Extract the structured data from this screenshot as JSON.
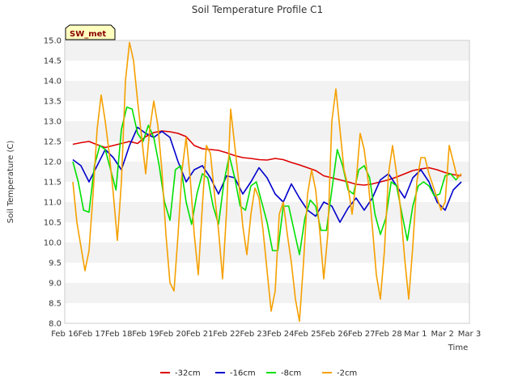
{
  "chart_data": {
    "type": "line",
    "title": "Soil Temperature Profile C1",
    "xlabel": "Time",
    "ylabel": "Soil Temperature (C)",
    "badge": "SW_met",
    "x_ticks": [
      "Feb 16",
      "Feb 17",
      "Feb 18",
      "Feb 19",
      "Feb 20",
      "Feb 21",
      "Feb 22",
      "Feb 23",
      "Feb 24",
      "Feb 25",
      "Feb 26",
      "Feb 27",
      "Feb 28",
      "Mar 1",
      "Mar 2",
      "Mar 3"
    ],
    "y_ticks": [
      "8.0",
      "8.5",
      "9.0",
      "9.5",
      "10.0",
      "10.5",
      "11.0",
      "11.5",
      "12.0",
      "12.5",
      "13.0",
      "13.5",
      "14.0",
      "14.5",
      "15.0"
    ],
    "xlim": [
      0,
      15
    ],
    "ylim": [
      8.0,
      15.0
    ],
    "x_unit": "days since Feb 16",
    "grid": "horizontal bands",
    "legend_position": "bottom",
    "series": [
      {
        "name": "-32cm",
        "color": "#dd0000",
        "x": [
          0.3,
          0.6,
          0.9,
          1.2,
          1.5,
          1.8,
          2.1,
          2.4,
          2.7,
          3.0,
          3.3,
          3.6,
          3.9,
          4.2,
          4.5,
          4.8,
          5.1,
          5.4,
          5.7,
          6.0,
          6.3,
          6.6,
          6.9,
          7.2,
          7.5,
          7.8,
          8.1,
          8.4,
          8.7,
          9.0,
          9.3,
          9.6,
          9.9,
          10.2,
          10.5,
          10.8,
          11.1,
          11.4,
          11.7,
          12.0,
          12.3,
          12.6,
          12.9,
          13.2,
          13.5,
          13.8,
          14.1,
          14.4,
          14.7
        ],
        "y": [
          12.43,
          12.47,
          12.5,
          12.42,
          12.35,
          12.4,
          12.45,
          12.5,
          12.45,
          12.62,
          12.72,
          12.76,
          12.74,
          12.7,
          12.62,
          12.4,
          12.32,
          12.3,
          12.28,
          12.22,
          12.15,
          12.1,
          12.08,
          12.05,
          12.04,
          12.08,
          12.05,
          11.98,
          11.92,
          11.85,
          11.78,
          11.65,
          11.6,
          11.55,
          11.5,
          11.44,
          11.42,
          11.45,
          11.5,
          11.55,
          11.62,
          11.7,
          11.78,
          11.82,
          11.85,
          11.8,
          11.73,
          11.68,
          11.65
        ]
      },
      {
        "name": "-16cm",
        "color": "#0000cc",
        "x": [
          0.3,
          0.6,
          0.9,
          1.2,
          1.5,
          1.8,
          2.1,
          2.4,
          2.7,
          3.0,
          3.3,
          3.6,
          3.9,
          4.2,
          4.5,
          4.8,
          5.1,
          5.4,
          5.7,
          6.0,
          6.3,
          6.6,
          6.9,
          7.2,
          7.5,
          7.8,
          8.1,
          8.4,
          8.7,
          9.0,
          9.3,
          9.6,
          9.9,
          10.2,
          10.5,
          10.8,
          11.1,
          11.4,
          11.7,
          12.0,
          12.3,
          12.6,
          12.9,
          13.2,
          13.5,
          13.8,
          14.1,
          14.4,
          14.7
        ],
        "y": [
          12.05,
          11.9,
          11.5,
          11.9,
          12.3,
          12.1,
          11.8,
          12.4,
          12.85,
          12.7,
          12.6,
          12.75,
          12.6,
          12.0,
          11.5,
          11.8,
          11.9,
          11.6,
          11.2,
          11.65,
          11.6,
          11.2,
          11.5,
          11.85,
          11.6,
          11.2,
          11.0,
          11.45,
          11.1,
          10.8,
          10.65,
          11.0,
          10.9,
          10.5,
          10.85,
          11.1,
          10.8,
          11.1,
          11.55,
          11.7,
          11.4,
          11.1,
          11.6,
          11.8,
          11.5,
          11.0,
          10.8,
          11.3,
          11.5
        ]
      },
      {
        "name": "-8cm",
        "color": "#00e000",
        "x": [
          0.3,
          0.5,
          0.7,
          0.9,
          1.1,
          1.3,
          1.5,
          1.7,
          1.9,
          2.1,
          2.3,
          2.5,
          2.7,
          2.9,
          3.1,
          3.3,
          3.5,
          3.7,
          3.9,
          4.1,
          4.3,
          4.5,
          4.7,
          4.9,
          5.1,
          5.3,
          5.5,
          5.7,
          5.9,
          6.1,
          6.3,
          6.5,
          6.7,
          6.9,
          7.1,
          7.3,
          7.5,
          7.7,
          7.9,
          8.1,
          8.3,
          8.5,
          8.7,
          8.9,
          9.1,
          9.3,
          9.5,
          9.7,
          9.9,
          10.1,
          10.3,
          10.5,
          10.7,
          10.9,
          11.1,
          11.3,
          11.5,
          11.7,
          11.9,
          12.1,
          12.3,
          12.5,
          12.7,
          12.9,
          13.1,
          13.3,
          13.5,
          13.7,
          13.9,
          14.1,
          14.3,
          14.5,
          14.7
        ],
        "y": [
          12.0,
          11.5,
          10.8,
          10.75,
          11.9,
          12.4,
          12.3,
          11.8,
          11.3,
          12.8,
          13.35,
          13.3,
          12.7,
          12.5,
          12.9,
          12.6,
          11.9,
          11.0,
          10.55,
          11.8,
          11.9,
          11.0,
          10.45,
          11.2,
          11.7,
          11.6,
          10.9,
          10.45,
          11.5,
          12.15,
          11.6,
          10.9,
          10.8,
          11.4,
          11.5,
          11.0,
          10.5,
          9.8,
          9.8,
          10.9,
          10.9,
          10.3,
          9.7,
          10.6,
          11.05,
          10.9,
          10.3,
          10.3,
          11.3,
          12.3,
          11.9,
          11.3,
          11.2,
          11.8,
          11.9,
          11.6,
          10.7,
          10.2,
          10.6,
          11.5,
          11.4,
          10.7,
          10.05,
          10.9,
          11.4,
          11.5,
          11.4,
          11.15,
          11.2,
          11.65,
          11.7,
          11.55,
          11.7
        ]
      },
      {
        "name": "-2cm",
        "color": "#f5a000",
        "x": [
          0.3,
          0.45,
          0.6,
          0.75,
          0.9,
          1.05,
          1.2,
          1.35,
          1.5,
          1.65,
          1.8,
          1.95,
          2.1,
          2.25,
          2.4,
          2.55,
          2.7,
          2.85,
          3.0,
          3.15,
          3.3,
          3.45,
          3.6,
          3.75,
          3.9,
          4.05,
          4.2,
          4.35,
          4.5,
          4.65,
          4.8,
          4.95,
          5.1,
          5.25,
          5.4,
          5.55,
          5.7,
          5.85,
          6.0,
          6.15,
          6.3,
          6.45,
          6.6,
          6.75,
          6.9,
          7.05,
          7.2,
          7.35,
          7.5,
          7.65,
          7.8,
          7.95,
          8.1,
          8.25,
          8.4,
          8.55,
          8.7,
          8.85,
          9.0,
          9.15,
          9.3,
          9.45,
          9.6,
          9.75,
          9.9,
          10.05,
          10.2,
          10.35,
          10.5,
          10.65,
          10.8,
          10.95,
          11.1,
          11.25,
          11.4,
          11.55,
          11.7,
          11.85,
          12.0,
          12.15,
          12.3,
          12.45,
          12.6,
          12.75,
          12.9,
          13.05,
          13.2,
          13.35,
          13.5,
          13.65,
          13.8,
          13.95,
          14.1,
          14.25,
          14.4,
          14.55,
          14.7
        ],
        "y": [
          11.5,
          10.5,
          9.9,
          9.3,
          9.8,
          11.2,
          12.8,
          13.65,
          13.0,
          12.2,
          11.2,
          10.05,
          11.5,
          14.0,
          14.95,
          14.5,
          13.5,
          12.6,
          11.7,
          12.8,
          13.5,
          12.9,
          11.8,
          10.2,
          9.0,
          8.8,
          10.2,
          11.8,
          12.6,
          11.6,
          10.2,
          9.2,
          10.9,
          12.4,
          12.2,
          11.2,
          10.3,
          9.1,
          10.8,
          13.3,
          12.4,
          11.5,
          10.4,
          9.7,
          10.7,
          11.35,
          11.1,
          10.3,
          9.3,
          8.3,
          8.8,
          10.7,
          11.0,
          10.2,
          9.5,
          8.6,
          8.05,
          9.5,
          11.2,
          11.8,
          11.3,
          10.3,
          9.1,
          10.2,
          13.0,
          13.8,
          12.8,
          11.8,
          11.4,
          10.7,
          11.5,
          12.7,
          12.3,
          11.5,
          10.4,
          9.2,
          8.6,
          9.8,
          11.7,
          12.4,
          11.7,
          10.8,
          9.6,
          8.6,
          9.9,
          11.5,
          12.1,
          12.1,
          11.7,
          11.4,
          11.1,
          10.8,
          11.0,
          12.4,
          12.0,
          11.6,
          11.7
        ]
      }
    ]
  }
}
